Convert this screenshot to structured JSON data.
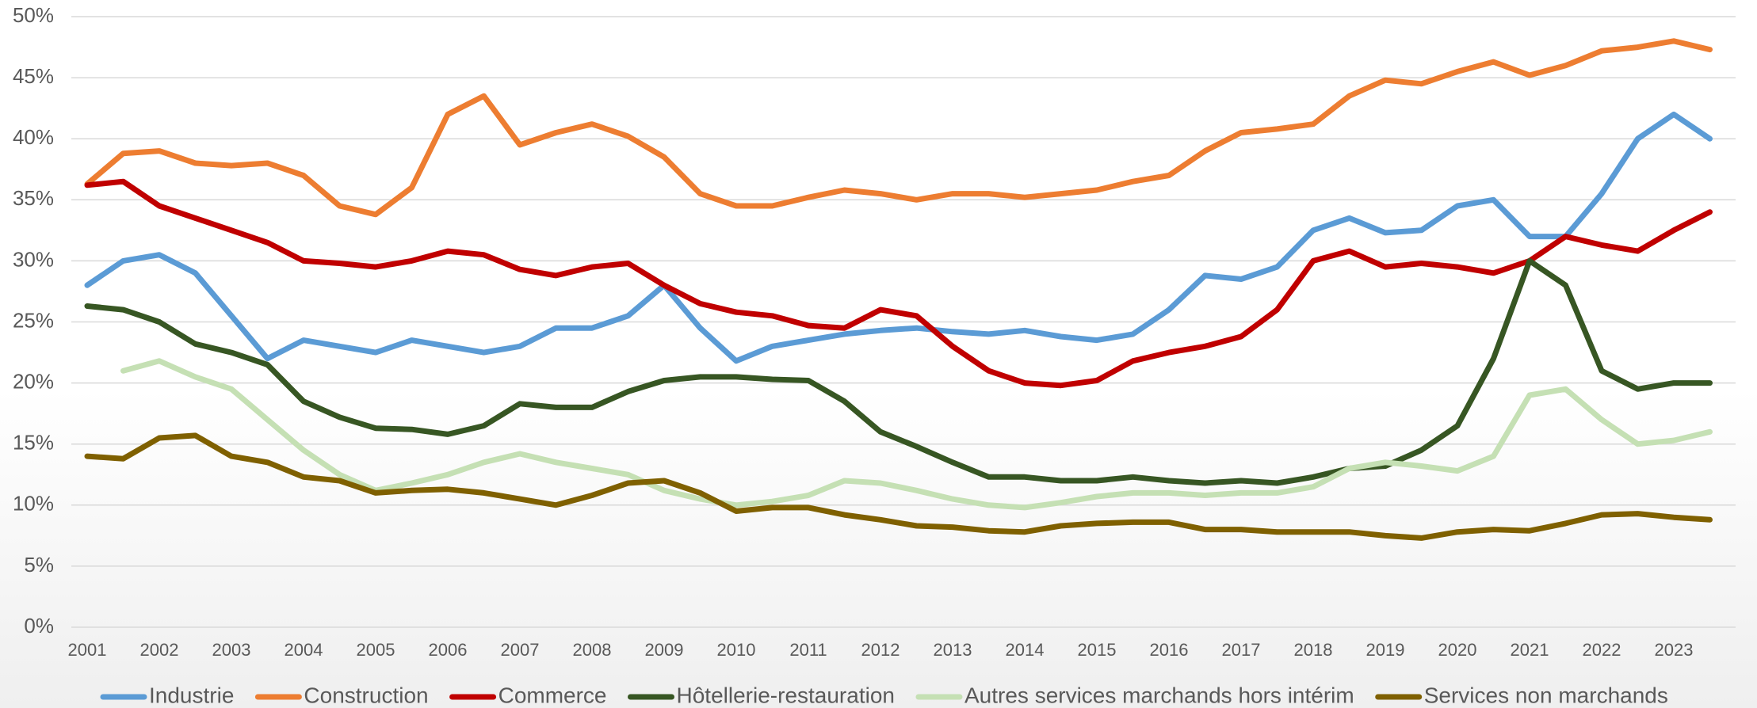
{
  "chart_data": {
    "type": "line",
    "categories": [
      "2001",
      null,
      "2002",
      null,
      "2003",
      null,
      "2004",
      null,
      "2005",
      null,
      "2006",
      null,
      "2007",
      null,
      "2008",
      null,
      "2009",
      null,
      "2010",
      null,
      "2011",
      null,
      "2012",
      null,
      "2013",
      null,
      "2014",
      null,
      "2015",
      null,
      "2016",
      null,
      "2017",
      null,
      "2018",
      null,
      "2019",
      null,
      "2020",
      null,
      "2021",
      null,
      "2022",
      null,
      "2023",
      null
    ],
    "ylim": [
      0,
      50
    ],
    "yticks": [
      {
        "value": 0,
        "label": "0%"
      },
      {
        "value": 5,
        "label": "5%"
      },
      {
        "value": 10,
        "label": "10%"
      },
      {
        "value": 15,
        "label": "15%"
      },
      {
        "value": 20,
        "label": "20%"
      },
      {
        "value": 25,
        "label": "25%"
      },
      {
        "value": 30,
        "label": "30%"
      },
      {
        "value": 35,
        "label": "35%"
      },
      {
        "value": 40,
        "label": "40%"
      },
      {
        "value": 45,
        "label": "45%"
      },
      {
        "value": 50,
        "label": "50%"
      }
    ],
    "grid": true,
    "legend": "bottom",
    "series": [
      {
        "name": "Industrie",
        "color": "#5b9bd5",
        "values": [
          28,
          30,
          30.5,
          29,
          25.5,
          22,
          23.5,
          23,
          22.5,
          23.5,
          23,
          22.5,
          23,
          24.5,
          24.5,
          25.5,
          28,
          24.5,
          21.8,
          23,
          23.5,
          24,
          24.3,
          24.5,
          24.2,
          24,
          24.3,
          23.8,
          23.5,
          24,
          26,
          28.8,
          28.5,
          29.5,
          32.5,
          33.5,
          32.3,
          32.5,
          34.5,
          35,
          32,
          32,
          35.5,
          40,
          42,
          40
        ]
      },
      {
        "name": "Construction",
        "color": "#ed7d31",
        "values": [
          36.3,
          38.8,
          39,
          38,
          37.8,
          38,
          37,
          34.5,
          33.8,
          36,
          42,
          43.5,
          39.5,
          40.5,
          41.2,
          40.2,
          38.5,
          35.5,
          34.5,
          34.5,
          35.2,
          35.8,
          35.5,
          35,
          35.5,
          35.5,
          35.2,
          35.5,
          35.8,
          36.5,
          37,
          39,
          40.5,
          40.8,
          41.2,
          43.5,
          44.8,
          44.5,
          45.5,
          46.3,
          45.2,
          46,
          47.2,
          47.5,
          48,
          47.3
        ]
      },
      {
        "name": "Commerce",
        "color": "#c00000",
        "values": [
          36.2,
          36.5,
          34.5,
          33.5,
          32.5,
          31.5,
          30,
          29.8,
          29.5,
          30,
          30.8,
          30.5,
          29.3,
          28.8,
          29.5,
          29.8,
          28,
          26.5,
          25.8,
          25.5,
          24.7,
          24.5,
          26,
          25.5,
          23,
          21,
          20,
          19.8,
          20.2,
          21.8,
          22.5,
          23,
          23.8,
          26,
          30,
          30.8,
          29.5,
          29.8,
          29.5,
          29,
          30,
          32,
          31.3,
          30.8,
          32.5,
          34
        ]
      },
      {
        "name": "Hôtellerie-restauration",
        "color": "#375623",
        "values": [
          26.3,
          26,
          25,
          23.2,
          22.5,
          21.5,
          18.5,
          17.2,
          16.3,
          16.2,
          15.8,
          16.5,
          18.3,
          18,
          18,
          19.3,
          20.2,
          20.5,
          20.5,
          20.3,
          20.2,
          18.5,
          16,
          14.8,
          13.5,
          12.3,
          12.3,
          12,
          12,
          12.3,
          12,
          11.8,
          12,
          11.8,
          12.3,
          13,
          13.2,
          14.5,
          16.5,
          22,
          30,
          28,
          21,
          19.5,
          20,
          20
        ]
      },
      {
        "name": "Autres services marchands hors intérim",
        "color": "#c5e0b4",
        "values": [
          null,
          21,
          21.8,
          20.5,
          19.5,
          17,
          14.5,
          12.5,
          11.2,
          11.8,
          12.5,
          13.5,
          14.2,
          13.5,
          13,
          12.5,
          11.2,
          10.5,
          10,
          10.3,
          10.8,
          12,
          11.8,
          11.2,
          10.5,
          10,
          9.8,
          10.2,
          10.7,
          11,
          11,
          10.8,
          11,
          11,
          11.5,
          13,
          13.5,
          13.2,
          12.8,
          14,
          19,
          19.5,
          17,
          15,
          15.3,
          16
        ]
      },
      {
        "name": "Services non marchands",
        "color": "#7f6000",
        "values": [
          14,
          13.8,
          15.5,
          15.7,
          14,
          13.5,
          12.3,
          12,
          11,
          11.2,
          11.3,
          11,
          10.5,
          10,
          10.8,
          11.8,
          12,
          11,
          9.5,
          9.8,
          9.8,
          9.2,
          8.8,
          8.3,
          8.2,
          7.9,
          7.8,
          8.3,
          8.5,
          8.6,
          8.6,
          8,
          8,
          7.8,
          7.8,
          7.8,
          7.5,
          7.3,
          7.8,
          8,
          7.9,
          8.5,
          9.2,
          9.3,
          9,
          8.8
        ]
      }
    ]
  }
}
